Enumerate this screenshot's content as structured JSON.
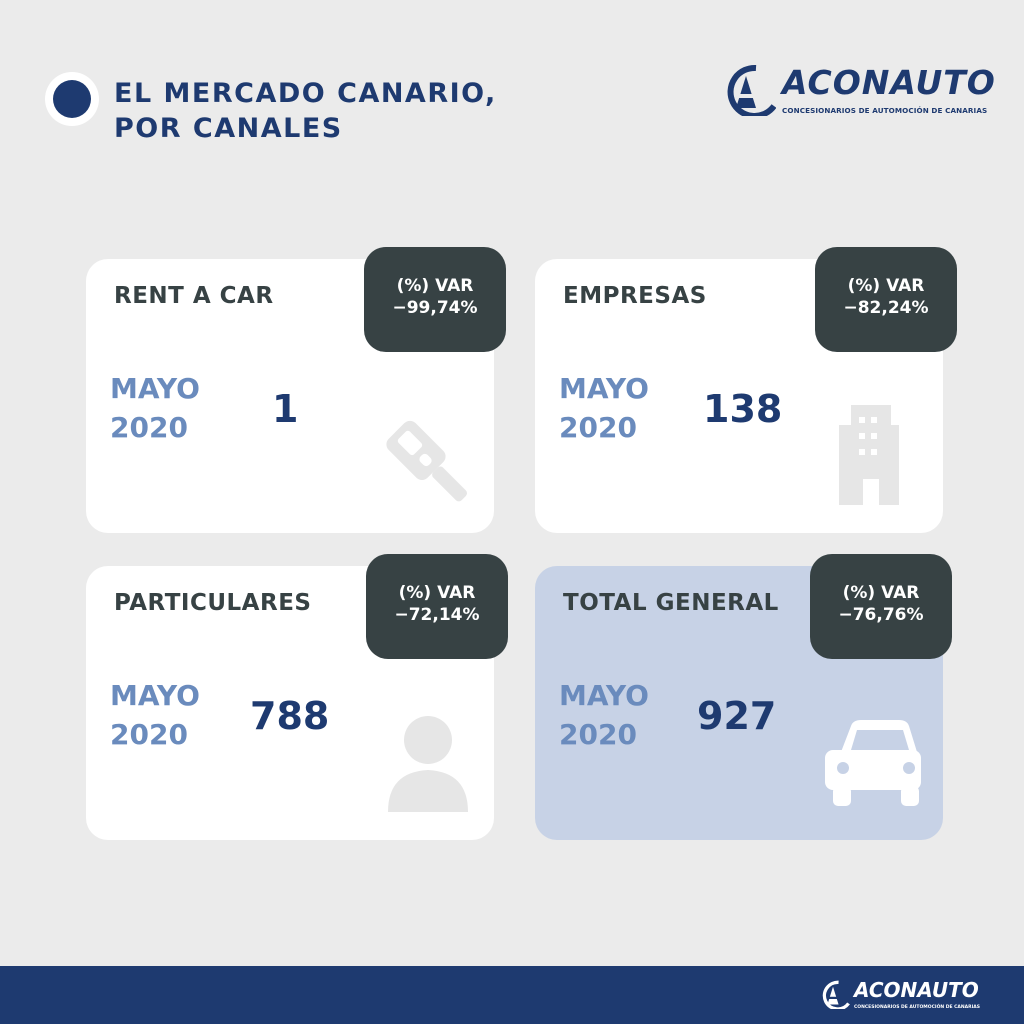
{
  "header": {
    "title_line1": "EL MERCADO CANARIO,",
    "title_line2": "POR CANALES"
  },
  "logo": {
    "name": "ACONAUTO",
    "tagline": "CONCESIONARIOS DE AUTOMOCIÓN DE CANARIAS"
  },
  "colors": {
    "brand": "#1e3a70",
    "accent_light": "#6a8bbd",
    "badge": "#374244",
    "total_card": "#c7d2e6",
    "background": "#ebebeb"
  },
  "cards": [
    {
      "label": "RENT A CAR",
      "period_month": "MAYO",
      "period_year": "2020",
      "value": "1",
      "var_label": "(%) VAR",
      "var_value": "−99,74%",
      "icon": "car-key-icon"
    },
    {
      "label": "EMPRESAS",
      "period_month": "MAYO",
      "period_year": "2020",
      "value": "138",
      "var_label": "(%) VAR",
      "var_value": "−82,24%",
      "icon": "building-icon"
    },
    {
      "label": "PARTICULARES",
      "period_month": "MAYO",
      "period_year": "2020",
      "value": "788",
      "var_label": "(%) VAR",
      "var_value": "−72,14%",
      "icon": "person-icon"
    },
    {
      "label": "TOTAL GENERAL",
      "period_month": "MAYO",
      "period_year": "2020",
      "value": "927",
      "var_label": "(%) VAR",
      "var_value": "−76,76%",
      "icon": "car-icon"
    }
  ]
}
